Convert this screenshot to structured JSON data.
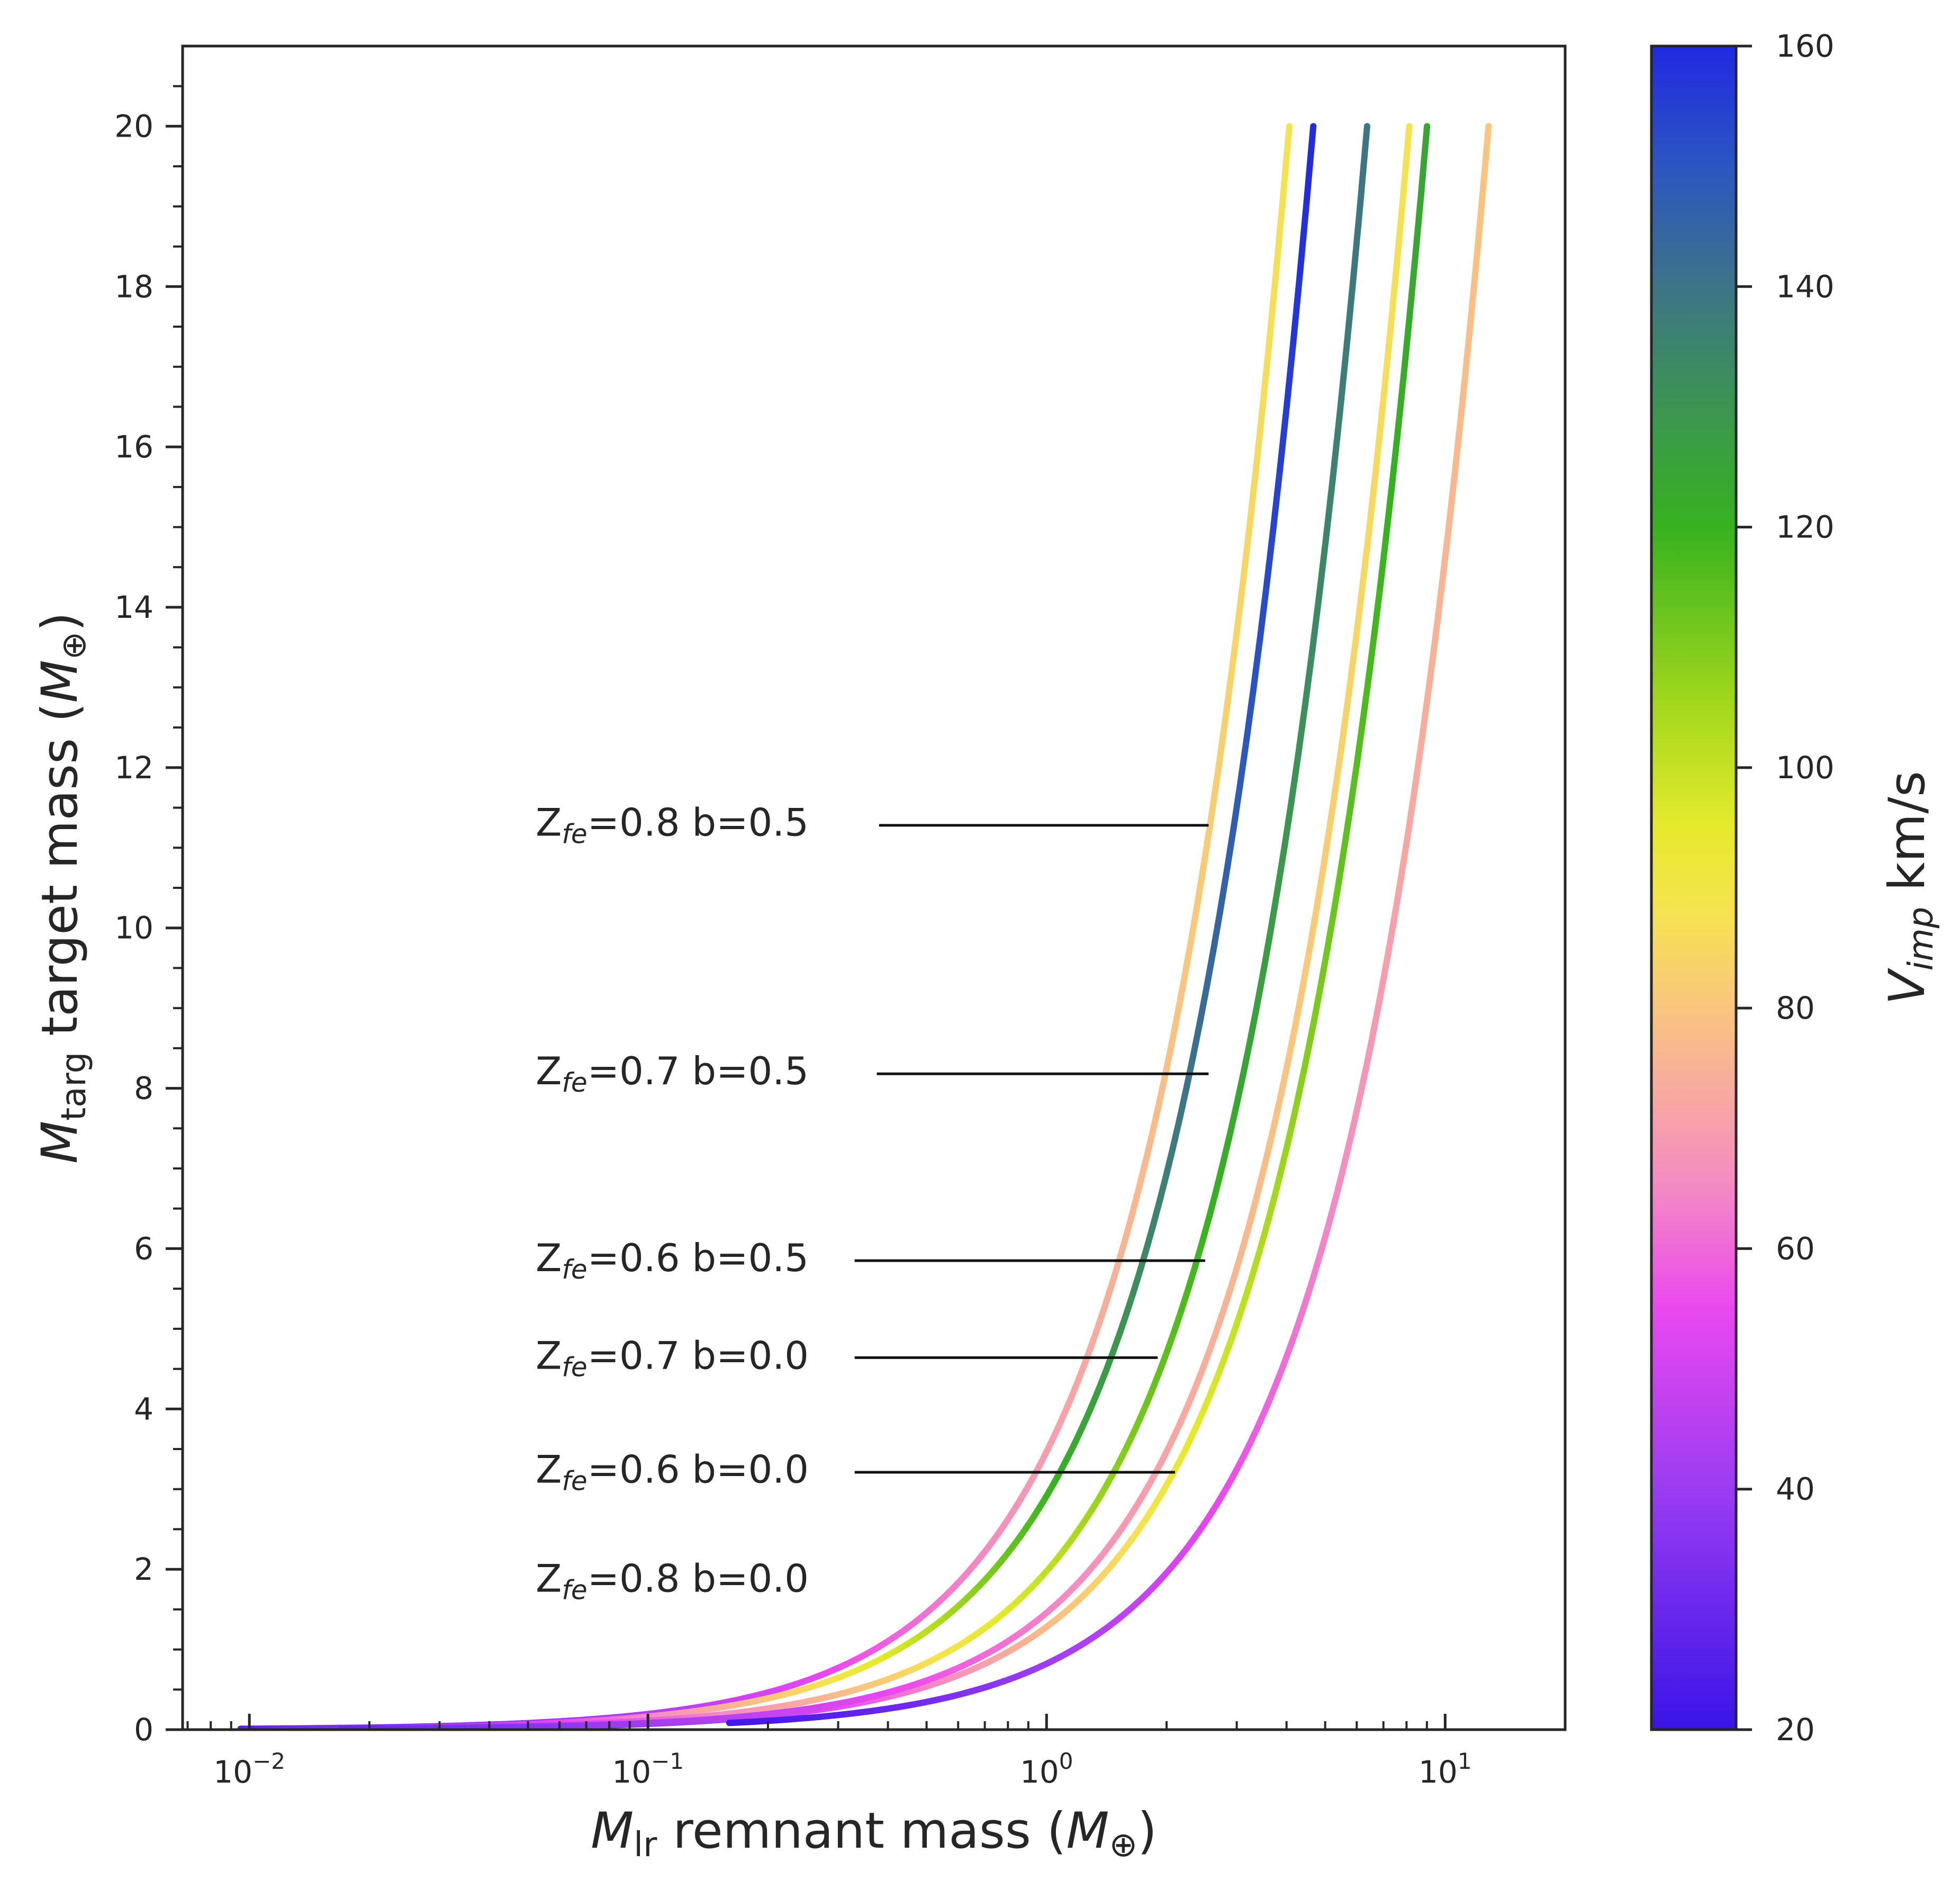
{
  "chart_data": {
    "type": "line",
    "xscale": "log",
    "xlabel": {
      "symbol": "M",
      "sub": "lr",
      "text": " remnant mass (",
      "unit_symbol": "M",
      "unit_sub": "⊕",
      "close": ")"
    },
    "ylabel": {
      "symbol": "M",
      "sub": "targ",
      "text": " target mass (",
      "unit_symbol": "M",
      "unit_sub": "⊕",
      "close": ")"
    },
    "xlim": [
      0.0068,
      20
    ],
    "ylim": [
      0,
      21
    ],
    "x_ticks": [
      {
        "value": 0.01,
        "base": "10",
        "exp": "−2"
      },
      {
        "value": 0.1,
        "base": "10",
        "exp": "−1"
      },
      {
        "value": 1,
        "base": "10",
        "exp": "0"
      },
      {
        "value": 10,
        "base": "10",
        "exp": "1"
      }
    ],
    "y_ticks": [
      0,
      2,
      4,
      6,
      8,
      10,
      12,
      14,
      16,
      18,
      20
    ],
    "y_tick_labels": [
      "0",
      "2",
      "4",
      "6",
      "8",
      "10",
      "12",
      "14",
      "16",
      "18",
      "20"
    ],
    "colorbar": {
      "label": {
        "symbol": "V",
        "sub": "imp",
        "text": " km/s"
      },
      "range": [
        20,
        160
      ],
      "ticks": [
        20,
        40,
        60,
        80,
        100,
        120,
        140,
        160
      ],
      "tick_labels": [
        "20",
        "40",
        "60",
        "80",
        "100",
        "120",
        "140",
        "160"
      ],
      "colormap": [
        {
          "v": 20,
          "c": "#3a14e8"
        },
        {
          "v": 40,
          "c": "#9b3cf2"
        },
        {
          "v": 55,
          "c": "#ea48ef"
        },
        {
          "v": 65,
          "c": "#f489c4"
        },
        {
          "v": 72,
          "c": "#f8a6a4"
        },
        {
          "v": 80,
          "c": "#f9c57e"
        },
        {
          "v": 88,
          "c": "#f5e34f"
        },
        {
          "v": 95,
          "c": "#e6ea2c"
        },
        {
          "v": 105,
          "c": "#a4d81c"
        },
        {
          "v": 120,
          "c": "#36b21f"
        },
        {
          "v": 130,
          "c": "#3c9552"
        },
        {
          "v": 140,
          "c": "#3d7487"
        },
        {
          "v": 150,
          "c": "#2b56c1"
        },
        {
          "v": 160,
          "c": "#2129e2"
        }
      ]
    },
    "series": [
      {
        "name": "Zfe=0.8 b=0.0",
        "k": 0.37,
        "xmin": 0.0095,
        "vmin": 25,
        "vmax": 88
      },
      {
        "name": "Zfe=0.8 b=0.5",
        "k": 0.425,
        "xmin": 0.0098,
        "vmin": 28,
        "vmax": 160
      },
      {
        "name": "Zfe=0.7 b=0.5",
        "k": 0.58,
        "xmin": 0.011,
        "vmin": 30,
        "vmax": 140
      },
      {
        "name": "Zfe=0.6 b=0.5",
        "k": 0.82,
        "xmin": 0.04,
        "vmin": 28,
        "vmax": 125
      },
      {
        "name": "Zfe=0.7 b=0.0",
        "k": 0.74,
        "xmin": 0.017,
        "vmin": 30,
        "vmax": 88
      },
      {
        "name": "Zfe=0.6 b=0.0",
        "k": 1.17,
        "xmin": 0.16,
        "vmin": 22,
        "vmax": 80
      }
    ],
    "annotations": [
      {
        "main": "Z",
        "sub": "fe",
        "rest": "=0.8 b=0.5",
        "y": 11.15,
        "arrow_from": 0.38,
        "arrow_to": 2.55,
        "arrow_y": 11.28
      },
      {
        "main": "Z",
        "sub": "fe",
        "rest": "=0.7 b=0.5",
        "y": 8.05,
        "arrow_from": 0.375,
        "arrow_to": 2.55,
        "arrow_y": 8.18
      },
      {
        "main": "Z",
        "sub": "fe",
        "rest": "=0.6 b=0.5",
        "y": 5.72,
        "arrow_from": 0.33,
        "arrow_to": 2.5,
        "arrow_y": 5.85
      },
      {
        "main": "Z",
        "sub": "fe",
        "rest": "=0.7 b=0.0",
        "y": 4.5,
        "arrow_from": 0.33,
        "arrow_to": 1.9,
        "arrow_y": 4.64
      },
      {
        "main": "Z",
        "sub": "fe",
        "rest": "=0.6 b=0.0",
        "y": 3.08,
        "arrow_from": 0.33,
        "arrow_to": 2.1,
        "arrow_y": 3.21
      },
      {
        "main": "Z",
        "sub": "fe",
        "rest": "=0.8 b=0.0",
        "y": 1.72
      }
    ]
  }
}
